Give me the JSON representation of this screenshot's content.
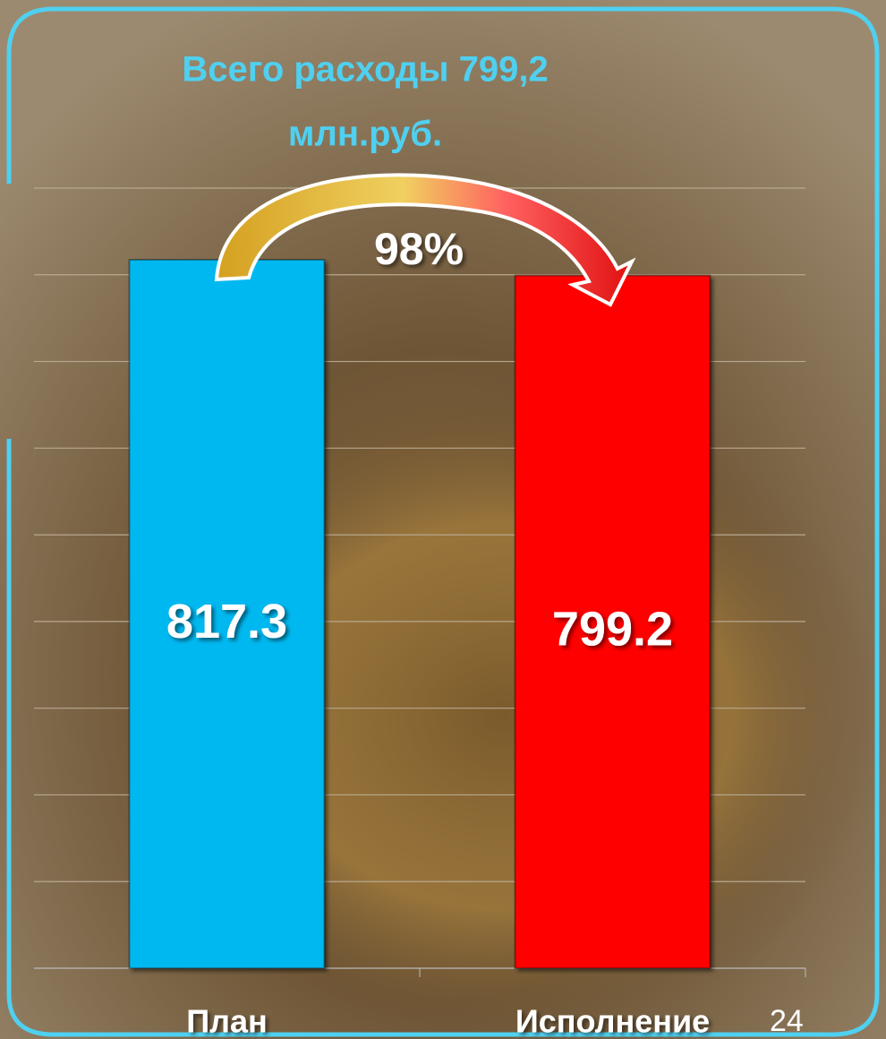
{
  "chart_data": {
    "type": "bar",
    "title": "Всего расходы 799,2",
    "subtitle": "млн.руб.",
    "annotation": "98%",
    "page_number": "24",
    "categories": [
      "План",
      "Исполнение"
    ],
    "values": [
      817.3,
      799.2
    ],
    "colors": [
      "#00b8f0",
      "#ff0000"
    ],
    "ylim": [
      0,
      900
    ],
    "yticks": [
      0,
      100,
      200,
      300,
      400,
      500,
      600,
      700,
      800,
      900
    ],
    "grid": true
  }
}
